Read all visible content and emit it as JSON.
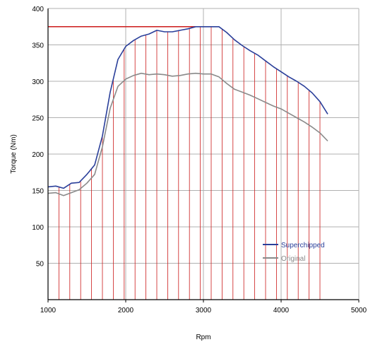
{
  "chart_data": {
    "type": "line",
    "title": "",
    "xlabel": "Rpm",
    "ylabel": "Torque (Nm)",
    "xlim": [
      1000,
      5000
    ],
    "ylim": [
      0,
      400
    ],
    "xticks": [
      1000,
      2000,
      3000,
      4000,
      5000
    ],
    "yticks": [
      50,
      100,
      150,
      200,
      250,
      300,
      350,
      400
    ],
    "x_tick_labels": [
      "1000",
      "2000",
      "3000",
      "4000",
      "5000"
    ],
    "y_tick_labels": [
      "50",
      "100",
      "150",
      "200",
      "250",
      "300",
      "350",
      "400"
    ],
    "grid": true,
    "legend_position": "lower-right",
    "colors": {
      "superchipped": "#2a3f9a",
      "original": "#8a8a8a",
      "highlight": "#cc1a1a",
      "grid": "#b0b0b0"
    },
    "peak_line_value": 375,
    "vertical_marker_rpms": [
      1000,
      1140,
      1280,
      1420,
      1560,
      1700,
      1840,
      1980,
      2120,
      2260,
      2400,
      2540,
      2680,
      2820,
      2960,
      3100,
      3240,
      3380,
      3520,
      3660,
      3800,
      3940,
      4080,
      4220,
      4360,
      4500
    ],
    "series": [
      {
        "name": "Superchipped",
        "x": [
          1000,
          1100,
          1200,
          1300,
          1400,
          1500,
          1600,
          1700,
          1800,
          1900,
          2000,
          2100,
          2200,
          2300,
          2400,
          2500,
          2600,
          2700,
          2800,
          2900,
          3000,
          3100,
          3200,
          3300,
          3400,
          3500,
          3600,
          3700,
          3800,
          3900,
          4000,
          4100,
          4200,
          4300,
          4400,
          4500,
          4600
        ],
        "values": [
          155,
          156,
          153,
          160,
          161,
          172,
          185,
          225,
          285,
          330,
          348,
          356,
          362,
          365,
          370,
          368,
          368,
          370,
          372,
          375,
          375,
          375,
          375,
          367,
          357,
          349,
          342,
          336,
          328,
          320,
          313,
          306,
          300,
          293,
          284,
          272,
          255
        ]
      },
      {
        "name": "Original",
        "x": [
          1000,
          1100,
          1200,
          1300,
          1400,
          1500,
          1600,
          1700,
          1800,
          1900,
          2000,
          2100,
          2200,
          2300,
          2400,
          2500,
          2600,
          2700,
          2800,
          2900,
          3000,
          3100,
          3200,
          3300,
          3400,
          3500,
          3600,
          3700,
          3800,
          3900,
          4000,
          4100,
          4200,
          4300,
          4400,
          4500,
          4600
        ],
        "values": [
          146,
          147,
          143,
          147,
          151,
          160,
          172,
          210,
          263,
          293,
          303,
          308,
          311,
          309,
          310,
          309,
          307,
          308,
          310,
          311,
          310,
          310,
          306,
          297,
          289,
          285,
          281,
          276,
          271,
          266,
          262,
          256,
          250,
          244,
          237,
          229,
          218
        ]
      }
    ]
  }
}
